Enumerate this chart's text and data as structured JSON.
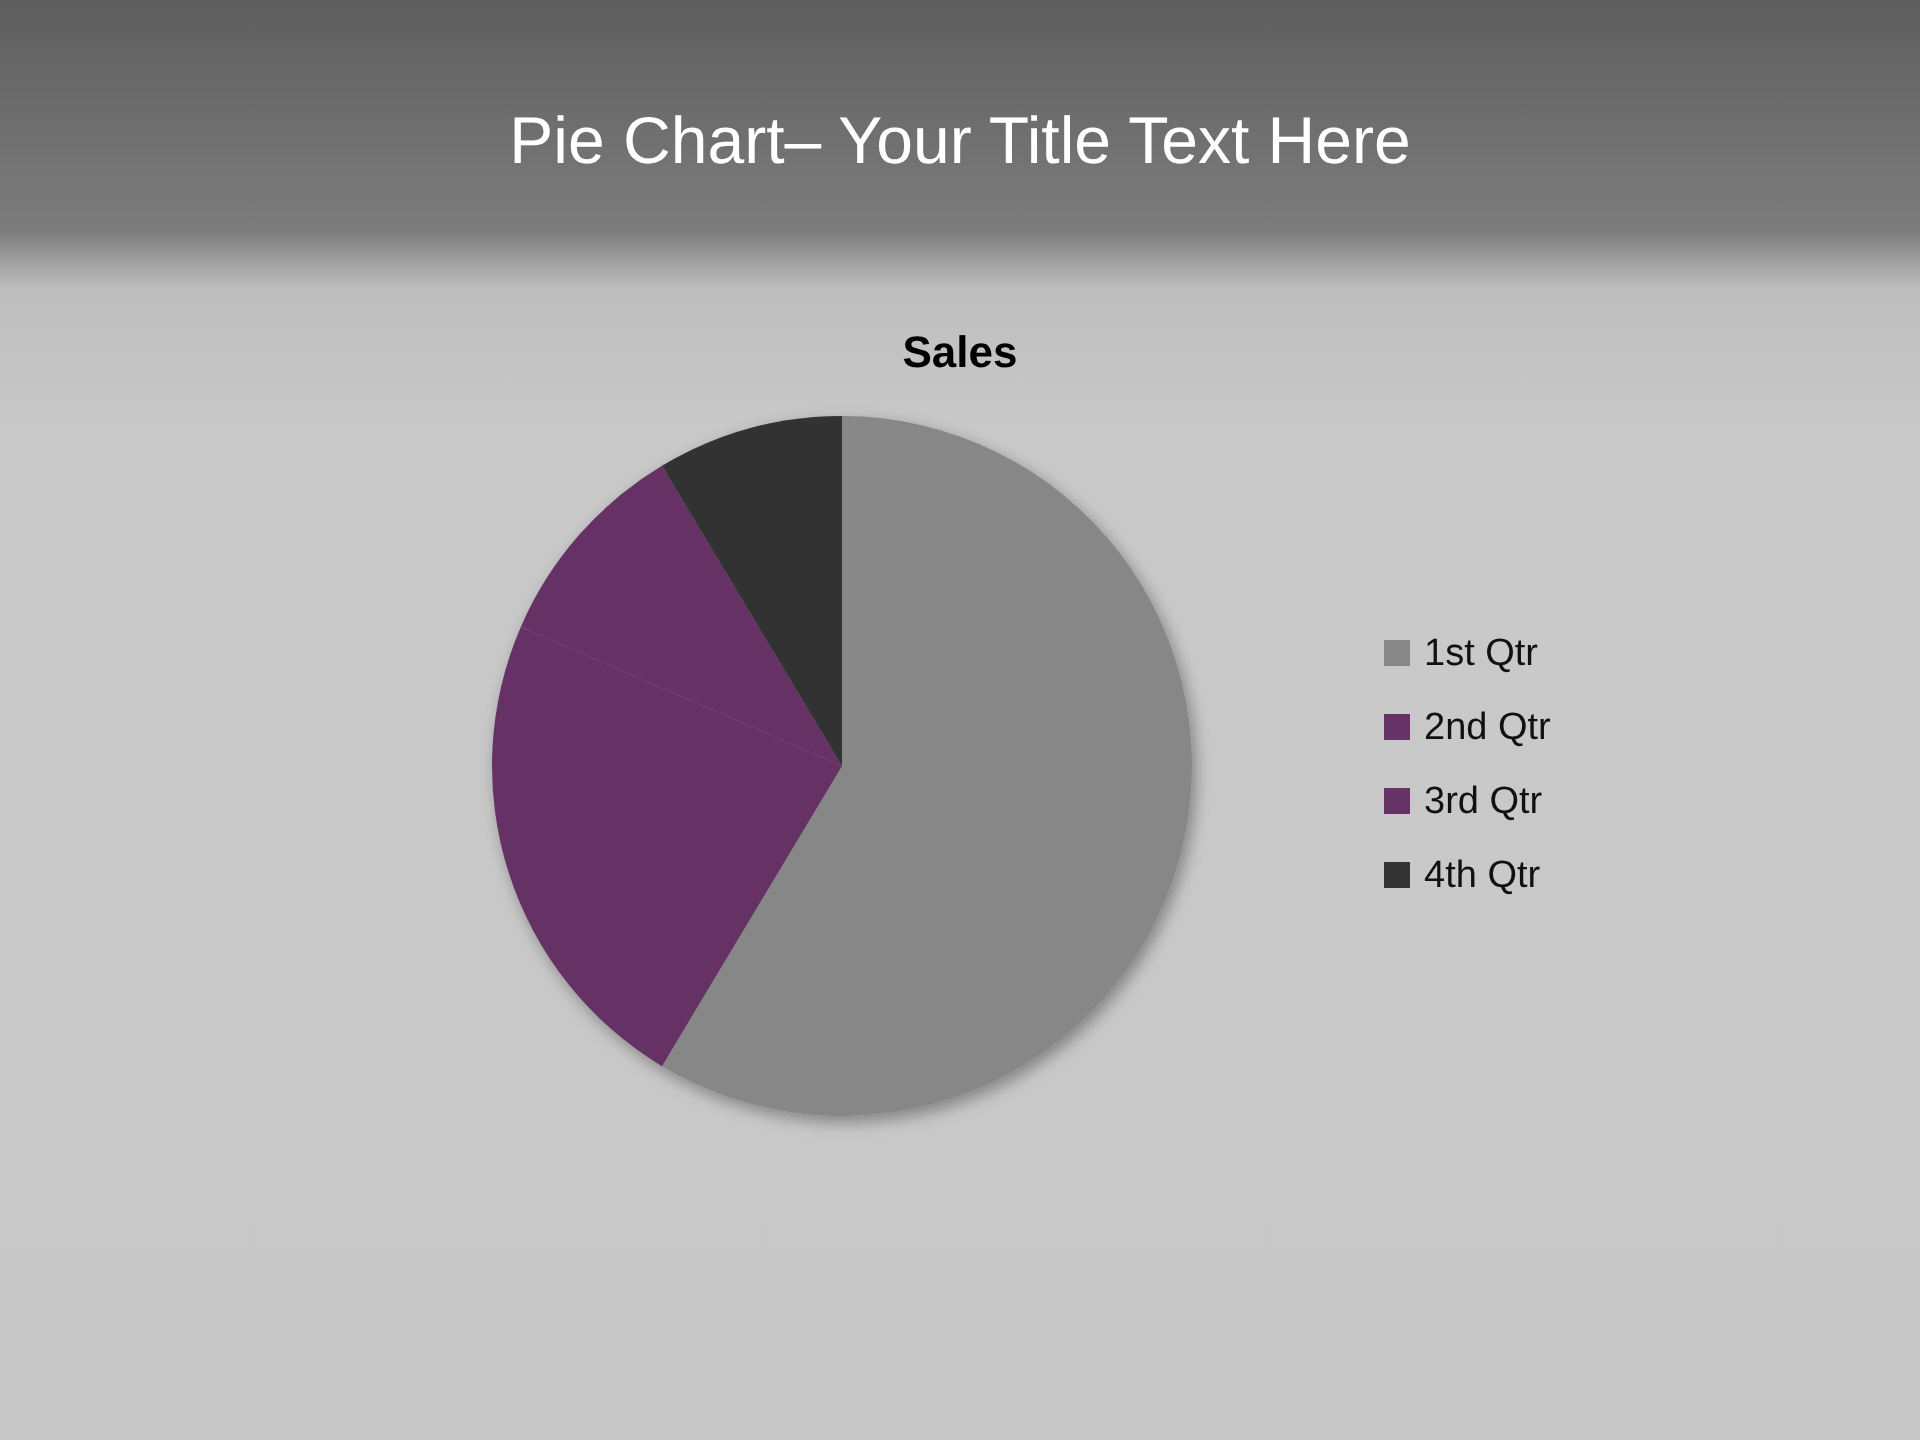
{
  "chart_data": {
    "type": "pie",
    "title": "Pie Chart– Your Title Text Here",
    "subtitle": "Sales",
    "categories": [
      "1st Qtr",
      "2nd Qtr",
      "3rd Qtr",
      "4th Qtr"
    ],
    "values": [
      58.6,
      22.9,
      9.9,
      8.6
    ],
    "colors": [
      "#878787",
      "#663366",
      "#663366",
      "#333333"
    ],
    "legend": "right"
  }
}
